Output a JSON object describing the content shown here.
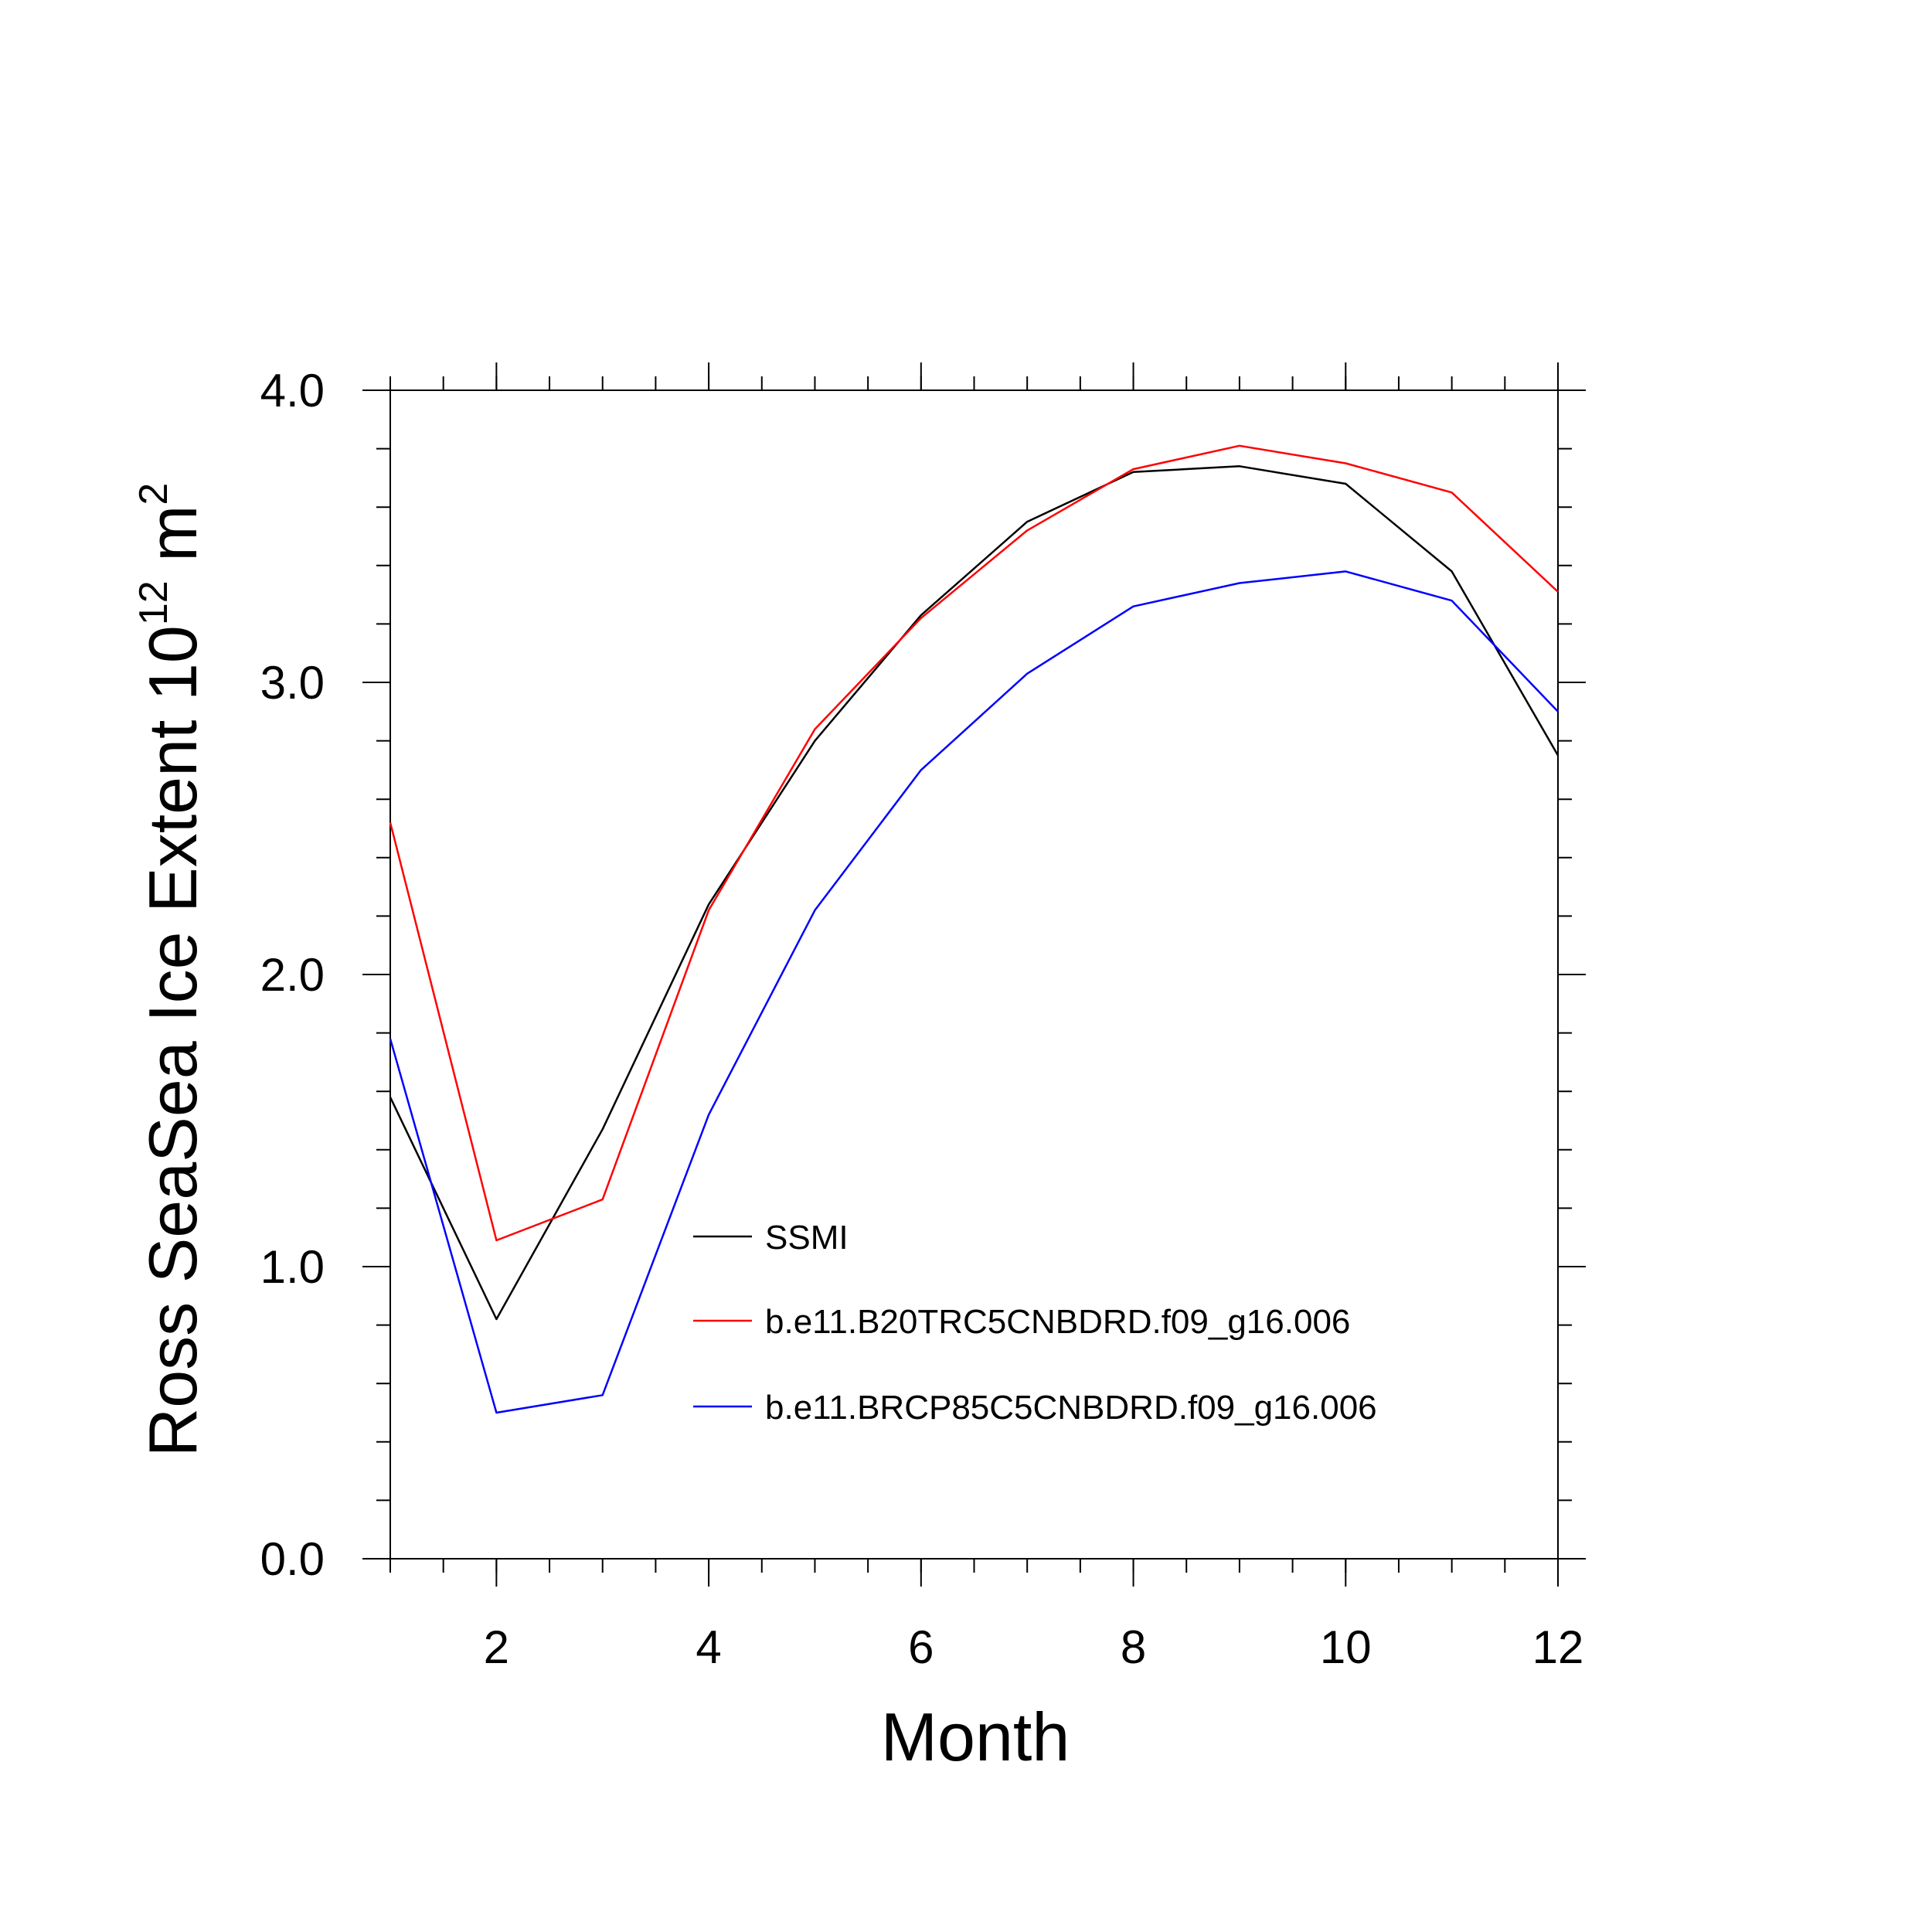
{
  "chart_data": {
    "type": "line",
    "title": "",
    "xlabel": "Month",
    "ylabel": {
      "prefix": "Ross SeaSea Ice Extent 10",
      "exponent": "12",
      "unit": "m",
      "unit_exponent": "2"
    },
    "xlim": [
      1,
      12
    ],
    "ylim": [
      0,
      4
    ],
    "x_ticks": [
      2,
      4,
      6,
      8,
      10,
      12
    ],
    "y_ticks": [
      {
        "value": 0,
        "label": "0.0"
      },
      {
        "value": 1,
        "label": "1.0"
      },
      {
        "value": 2,
        "label": "2.0"
      },
      {
        "value": 3,
        "label": "3.0"
      },
      {
        "value": 4,
        "label": "4.0"
      }
    ],
    "x": [
      1,
      2,
      3,
      4,
      5,
      6,
      7,
      8,
      9,
      10,
      11,
      12
    ],
    "series": [
      {
        "name": "SSMI",
        "color": "#000000",
        "values": [
          1.58,
          0.82,
          1.47,
          2.24,
          2.8,
          3.23,
          3.55,
          3.72,
          3.74,
          3.68,
          3.38,
          2.75
        ]
      },
      {
        "name": "b.e11.B20TRC5CNBDRD.f09_g16.006",
        "color": "#ff0000",
        "values": [
          2.52,
          1.09,
          1.23,
          2.22,
          2.84,
          3.22,
          3.52,
          3.73,
          3.81,
          3.75,
          3.65,
          3.31
        ]
      },
      {
        "name": "b.e11.BRCP85C5CNBDRD.f09_g16.006",
        "color": "#0000ff",
        "values": [
          1.78,
          0.5,
          0.56,
          1.52,
          2.22,
          2.7,
          3.03,
          3.26,
          3.34,
          3.38,
          3.28,
          2.9
        ]
      }
    ],
    "legend_position": "lower-center",
    "grid": false
  }
}
